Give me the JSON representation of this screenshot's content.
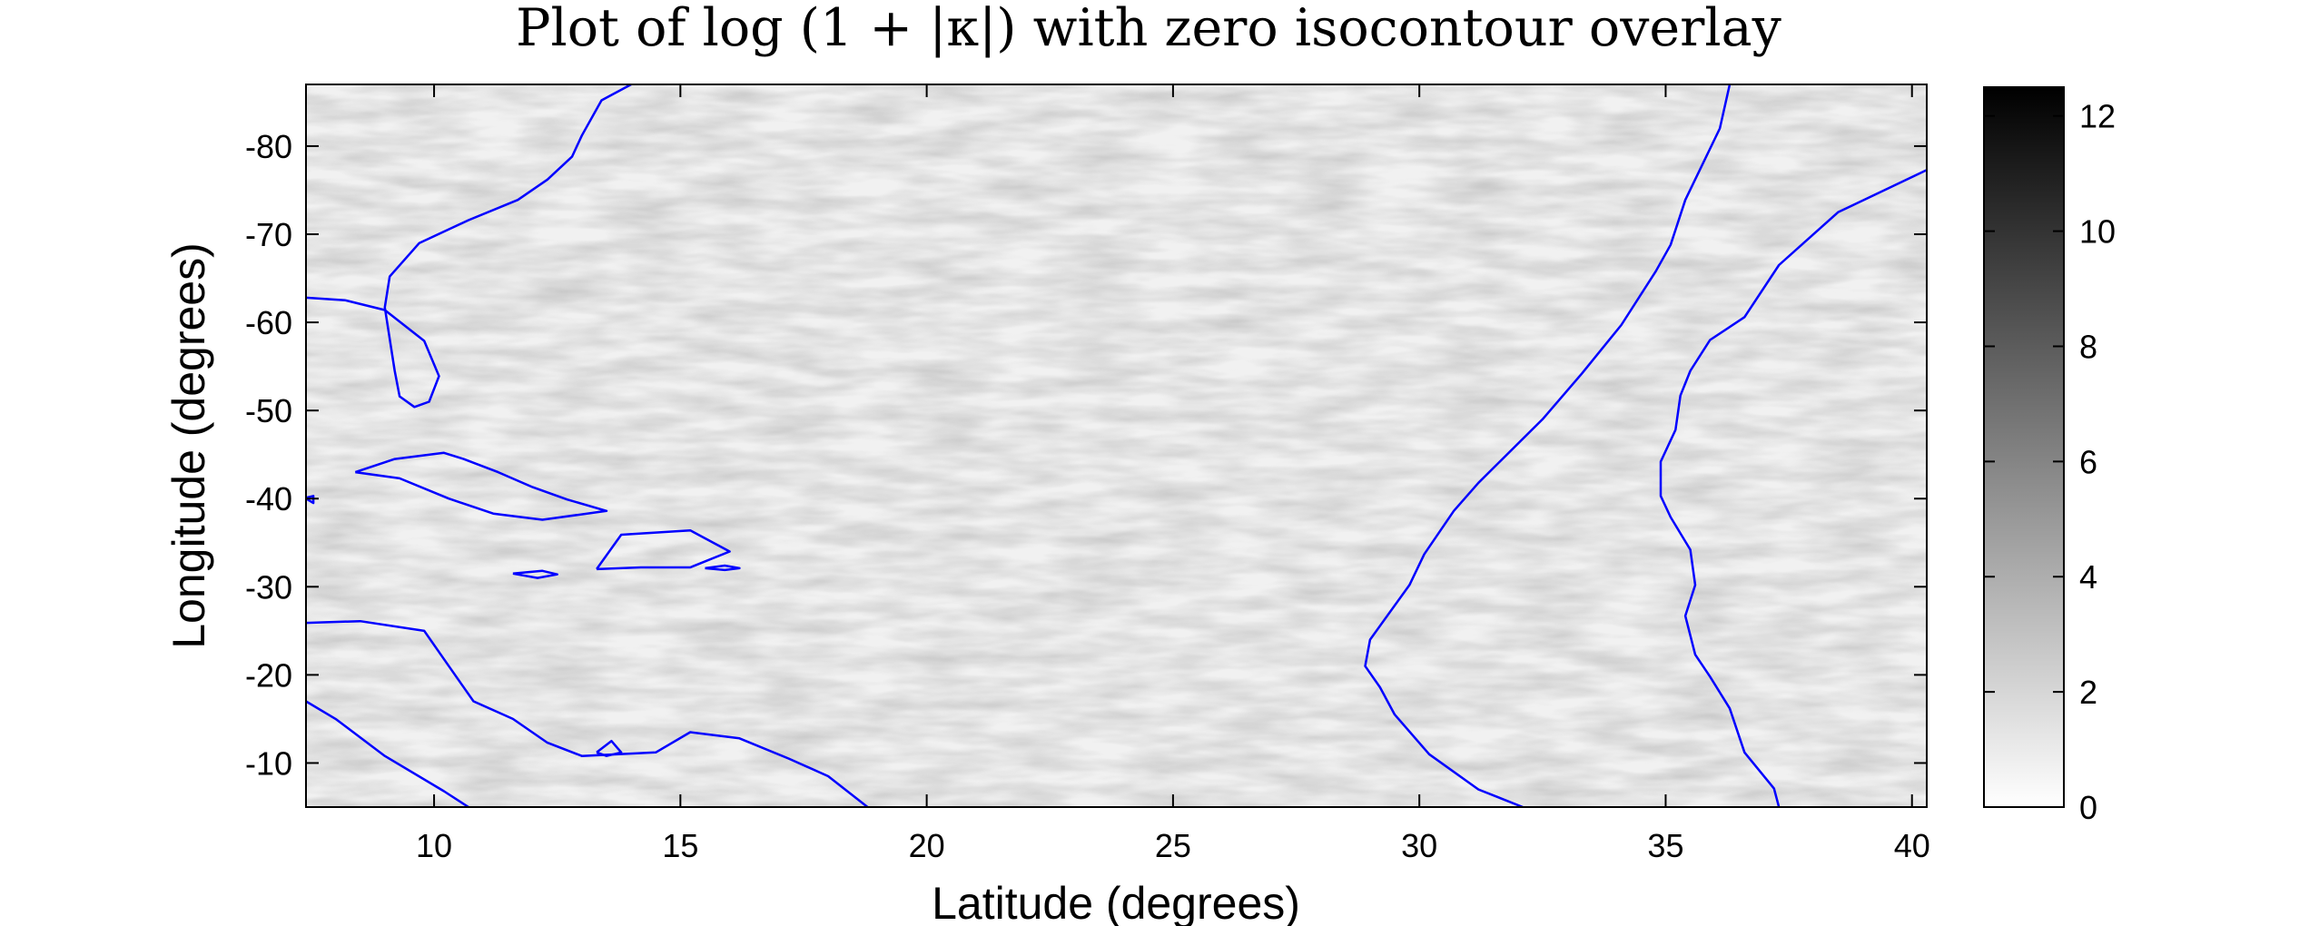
{
  "chart_data": [
    {
      "type": "heatmap",
      "title": "Plot of log (1 + |κ|) with zero isocontour overlay",
      "xlabel": "Latitude (degrees)",
      "ylabel": "Longitude (degrees)",
      "xlim": [
        7.4,
        40.3
      ],
      "ylim": [
        -5,
        -87
      ],
      "x_ticks": [
        10,
        15,
        20,
        25,
        30,
        35,
        40
      ],
      "x_tick_labels": [
        "10",
        "15",
        "20",
        "25",
        "30",
        "35",
        "40"
      ],
      "y_ticks": [
        -80,
        -70,
        -60,
        -50,
        -40,
        -30,
        -20,
        -10
      ],
      "y_tick_labels": [
        "-80",
        "-70",
        "-60",
        "-50",
        "-40",
        "-30",
        "-20",
        "-10"
      ],
      "grid": false,
      "colormap": "gray-reversed",
      "colorbar": {
        "range": [
          0,
          12.5
        ],
        "ticks": [
          0,
          2,
          4,
          6,
          8,
          10,
          12
        ],
        "tick_labels": [
          "0",
          "2",
          "4",
          "6",
          "8",
          "10",
          "12"
        ]
      },
      "background_value_typical": 0.5,
      "contour_color": "#0000ff",
      "contour_level": 0,
      "contours": [
        {
          "points": [
            [
              7.4,
              -62.8
            ],
            [
              8.2,
              -62.5
            ],
            [
              9.0,
              -61.4
            ],
            [
              9.8,
              -57.9
            ],
            [
              10.1,
              -53.9
            ],
            [
              9.9,
              -51.0
            ],
            [
              9.6,
              -50.4
            ],
            [
              9.3,
              -51.6
            ],
            [
              9.2,
              -54.5
            ],
            [
              9.0,
              -61.7
            ],
            [
              9.1,
              -65.2
            ],
            [
              9.7,
              -69.0
            ],
            [
              10.7,
              -71.6
            ],
            [
              11.7,
              -73.9
            ],
            [
              12.3,
              -76.2
            ],
            [
              12.8,
              -78.8
            ],
            [
              13.0,
              -81.2
            ],
            [
              13.4,
              -85.2
            ],
            [
              14.0,
              -87.0
            ]
          ]
        },
        {
          "points": [
            [
              7.4,
              -40.0
            ],
            [
              7.55,
              -39.5
            ],
            [
              7.55,
              -40.3
            ],
            [
              7.4,
              -40.1
            ]
          ]
        },
        {
          "points": [
            [
              8.4,
              -43.0
            ],
            [
              9.2,
              -44.5
            ],
            [
              10.2,
              -45.2
            ],
            [
              10.6,
              -44.5
            ],
            [
              11.3,
              -43.0
            ],
            [
              12.0,
              -41.3
            ],
            [
              12.7,
              -39.9
            ],
            [
              13.5,
              -38.6
            ],
            [
              12.2,
              -37.6
            ],
            [
              11.2,
              -38.3
            ],
            [
              10.3,
              -40.0
            ],
            [
              9.3,
              -42.3
            ],
            [
              8.4,
              -43.0
            ]
          ]
        },
        {
          "points": [
            [
              13.3,
              -32.0
            ],
            [
              13.8,
              -35.9
            ],
            [
              15.2,
              -36.4
            ],
            [
              16.0,
              -34.0
            ],
            [
              15.2,
              -32.2
            ],
            [
              14.2,
              -32.2
            ],
            [
              13.3,
              -32.0
            ]
          ]
        },
        {
          "points": [
            [
              11.6,
              -31.5
            ],
            [
              12.2,
              -31.8
            ],
            [
              12.5,
              -31.4
            ],
            [
              12.1,
              -31.0
            ],
            [
              11.6,
              -31.5
            ]
          ]
        },
        {
          "points": [
            [
              15.5,
              -32.1
            ],
            [
              15.9,
              -32.4
            ],
            [
              16.2,
              -32.1
            ],
            [
              15.9,
              -31.9
            ],
            [
              15.5,
              -32.1
            ]
          ]
        },
        {
          "points": [
            [
              7.4,
              -25.9
            ],
            [
              8.5,
              -26.1
            ],
            [
              9.8,
              -25.0
            ],
            [
              10.3,
              -21.0
            ],
            [
              10.8,
              -17.0
            ],
            [
              11.6,
              -15.0
            ],
            [
              12.3,
              -12.3
            ],
            [
              13.0,
              -10.8
            ],
            [
              14.5,
              -11.2
            ],
            [
              15.2,
              -13.5
            ],
            [
              16.2,
              -12.8
            ],
            [
              17.2,
              -10.5
            ],
            [
              18.0,
              -8.5
            ],
            [
              18.8,
              -5.0
            ]
          ]
        },
        {
          "points": [
            [
              7.4,
              -17.0
            ],
            [
              8.0,
              -15.0
            ],
            [
              9.0,
              -10.8
            ],
            [
              10.2,
              -6.8
            ],
            [
              10.7,
              -5.0
            ]
          ]
        },
        {
          "points": [
            [
              13.3,
              -11.2
            ],
            [
              13.6,
              -12.5
            ],
            [
              13.8,
              -11.2
            ],
            [
              13.5,
              -10.8
            ],
            [
              13.3,
              -11.2
            ]
          ]
        },
        {
          "points": [
            [
              36.3,
              -87.0
            ],
            [
              36.1,
              -82.0
            ],
            [
              35.4,
              -73.9
            ],
            [
              35.1,
              -68.8
            ],
            [
              34.8,
              -65.8
            ],
            [
              34.1,
              -59.7
            ],
            [
              33.3,
              -54.2
            ],
            [
              32.5,
              -49.0
            ],
            [
              31.2,
              -41.8
            ],
            [
              30.7,
              -38.6
            ],
            [
              30.1,
              -33.7
            ],
            [
              29.8,
              -30.2
            ],
            [
              29.0,
              -24.0
            ],
            [
              28.9,
              -21.0
            ],
            [
              29.2,
              -18.6
            ],
            [
              29.5,
              -15.5
            ],
            [
              30.2,
              -11.0
            ],
            [
              31.2,
              -7.0
            ],
            [
              32.1,
              -5.0
            ]
          ]
        },
        {
          "points": [
            [
              40.3,
              -77.3
            ],
            [
              38.5,
              -72.5
            ],
            [
              37.3,
              -66.5
            ],
            [
              36.6,
              -60.6
            ],
            [
              35.9,
              -58.0
            ],
            [
              35.5,
              -54.5
            ],
            [
              35.3,
              -51.7
            ],
            [
              35.2,
              -47.8
            ],
            [
              34.9,
              -44.2
            ],
            [
              34.9,
              -40.3
            ],
            [
              35.1,
              -37.9
            ],
            [
              35.5,
              -34.2
            ],
            [
              35.6,
              -30.2
            ],
            [
              35.4,
              -26.7
            ],
            [
              35.6,
              -22.3
            ],
            [
              35.9,
              -19.8
            ],
            [
              36.3,
              -16.2
            ],
            [
              36.6,
              -11.2
            ],
            [
              37.2,
              -7.1
            ],
            [
              37.3,
              -5.0
            ]
          ]
        }
      ]
    }
  ]
}
